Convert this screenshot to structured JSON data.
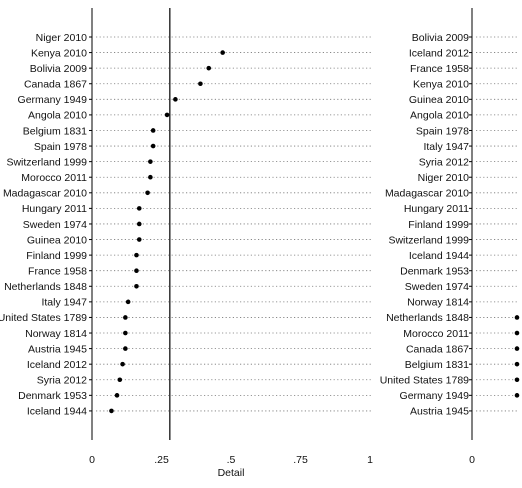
{
  "chart_data": [
    {
      "type": "dot",
      "xlabel": "Detail",
      "xlim": [
        0,
        1
      ],
      "xticks": [
        {
          "value": 0,
          "label": "0"
        },
        {
          "value": 0.25,
          "label": ".25"
        },
        {
          "value": 0.5,
          "label": ".5"
        },
        {
          "value": 0.75,
          "label": ".75"
        },
        {
          "value": 1,
          "label": "1"
        }
      ],
      "reference_line": 0.28,
      "categories": [
        "Niger 2010",
        "Kenya 2010",
        "Bolivia 2009",
        "Canada 1867",
        "Germany 1949",
        "Angola 2010",
        "Belgium 1831",
        "Spain 1978",
        "Switzerland 1999",
        "Morocco 2011",
        "Madagascar 2010",
        "Hungary 2011",
        "Sweden 1974",
        "Guinea 2010",
        "Finland 1999",
        "France 1958",
        "Netherlands 1848",
        "Italy 1947",
        "United States 1789",
        "Norway 1814",
        "Austria 1945",
        "Iceland 2012",
        "Syria 2012",
        "Denmark 1953",
        "Iceland 1944"
      ],
      "values": [
        null,
        0.47,
        0.42,
        0.39,
        0.3,
        0.27,
        0.22,
        0.22,
        0.21,
        0.21,
        0.2,
        0.17,
        0.17,
        0.17,
        0.16,
        0.16,
        0.16,
        0.13,
        0.12,
        0.12,
        0.12,
        0.11,
        0.1,
        0.09,
        0.07
      ]
    },
    {
      "type": "dot",
      "xlabel": "",
      "xticks": [
        {
          "value": 0,
          "label": "0"
        }
      ],
      "categories": [
        "Bolivia 2009",
        "Iceland 2012",
        "France 1958",
        "Kenya 2010",
        "Guinea 2010",
        "Angola 2010",
        "Spain 1978",
        "Italy 1947",
        "Syria 2012",
        "Niger 2010",
        "Madagascar 2010",
        "Hungary 2011",
        "Finland 1999",
        "Switzerland 1999",
        "Iceland 1944",
        "Denmark 1953",
        "Sweden 1974",
        "Norway 1814",
        "Netherlands 1848",
        "Morocco 2011",
        "Canada 1867",
        "Belgium 1831",
        "United States 1789",
        "Germany 1949",
        "Austria 1945"
      ],
      "values": [
        null,
        null,
        null,
        null,
        null,
        null,
        null,
        null,
        null,
        null,
        null,
        null,
        null,
        null,
        null,
        null,
        null,
        null,
        1.04,
        1.04,
        1.04,
        1.04,
        1.02,
        1.02,
        null
      ]
    }
  ]
}
